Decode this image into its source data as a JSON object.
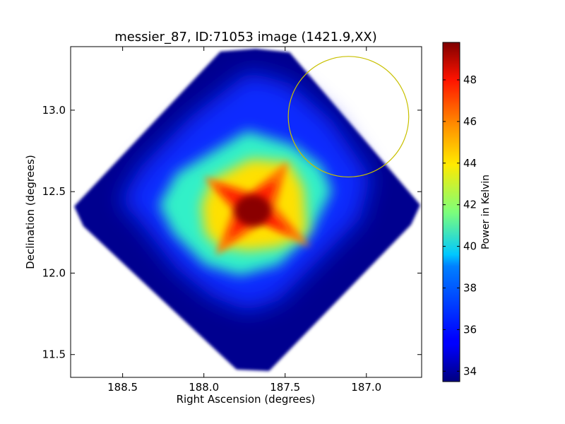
{
  "chart_data": {
    "type": "heatmap",
    "title": "messier_87, ID:71053 image (1421.9,XX)",
    "xlabel": "Right Ascension (degrees)",
    "ylabel": "Declination (degrees)",
    "colorbar_label": "Power in Kelvin",
    "colormap": "jet",
    "xlim": [
      188.82,
      186.66
    ],
    "ylim": [
      11.36,
      13.39
    ],
    "x_ticks": [
      188.5,
      188.0,
      187.5,
      187.0
    ],
    "x_tick_labels": [
      "188.5",
      "188.0",
      "187.5",
      "187.0"
    ],
    "y_ticks": [
      11.5,
      12.0,
      12.5,
      13.0
    ],
    "y_tick_labels": [
      "11.5",
      "12.0",
      "12.5",
      "13.0"
    ],
    "colorbar_range": [
      33.5,
      49.8
    ],
    "colorbar_ticks": [
      34,
      36,
      38,
      40,
      42,
      44,
      46,
      48
    ],
    "colorbar_tick_labels": [
      "34",
      "36",
      "38",
      "40",
      "42",
      "44",
      "46",
      "48"
    ],
    "map": {
      "shape": "diamond",
      "center_ra": 187.74,
      "center_dec": 12.39,
      "half_width_ra": 1.06,
      "half_height_dec": 1.0,
      "background_level": 33.8,
      "peak_ra": 187.72,
      "peak_dec": 12.39,
      "peak_level": 49.5
    },
    "annotations": [
      {
        "type": "circle",
        "ra": 187.11,
        "dec": 12.96,
        "radius_dec": 0.37,
        "color": "#c8c000"
      }
    ]
  }
}
